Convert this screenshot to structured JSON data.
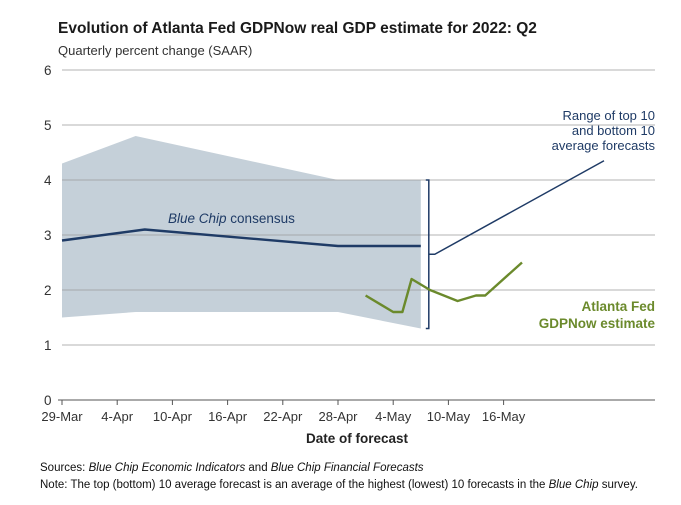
{
  "title": "Evolution of Atlanta Fed GDPNow real GDP estimate for 2022: Q2",
  "subtitle": "Quarterly percent change (SAAR)",
  "chart_data": {
    "type": "line",
    "title": "Evolution of Atlanta Fed GDPNow real GDP estimate for 2022: Q2",
    "ylabel": "Quarterly percent change (SAAR)",
    "xlabel": "Date of forecast",
    "ylim": [
      0,
      6
    ],
    "yticks": [
      0,
      1,
      2,
      3,
      4,
      5,
      6
    ],
    "xticks": [
      "29-Mar",
      "4-Apr",
      "10-Apr",
      "16-Apr",
      "22-Apr",
      "28-Apr",
      "4-May",
      "10-May",
      "16-May"
    ],
    "x_start": "29-Mar",
    "x_end": "19-May",
    "grid": "horizontal",
    "series": [
      {
        "name": "Blue Chip consensus",
        "color": "#1f3b66",
        "points": [
          [
            0,
            2.9
          ],
          [
            9,
            3.1
          ],
          [
            30,
            2.8
          ],
          [
            39,
            2.8
          ]
        ]
      },
      {
        "name": "Atlanta Fed GDPNow estimate",
        "color": "#6b8a2c",
        "points": [
          [
            33,
            1.9
          ],
          [
            36,
            1.6
          ],
          [
            37,
            1.6
          ],
          [
            38,
            2.2
          ],
          [
            40,
            2.0
          ],
          [
            43,
            1.8
          ],
          [
            45,
            1.9
          ],
          [
            46,
            1.9
          ],
          [
            50,
            2.5
          ]
        ]
      }
    ],
    "band": {
      "name": "Range of top 10 and bottom 10 average forecasts",
      "color": "#c5d0d9",
      "upper": [
        [
          0,
          4.3
        ],
        [
          8,
          4.8
        ],
        [
          30,
          4.0
        ],
        [
          39,
          4.0
        ]
      ],
      "lower": [
        [
          0,
          1.5
        ],
        [
          8,
          1.6
        ],
        [
          30,
          1.6
        ],
        [
          39,
          1.3
        ]
      ]
    },
    "annotations": {
      "blue_chip": "Blue Chip",
      "blue_chip_suffix": " consensus",
      "range_line1": "Range of top 10",
      "range_line2": "and bottom 10",
      "range_line3": "average forecasts",
      "gdpnow_line1": "Atlanta Fed",
      "gdpnow_line2": "GDPNow estimate"
    }
  },
  "footer": {
    "sources_label": "Sources:",
    "sources_src1": "Blue Chip Economic Indicators",
    "sources_and": " and ",
    "sources_src2": "Blue Chip Financial Forecasts",
    "note_label": "Note:",
    "note_text1": " The top (bottom) 10 average forecast is an average of the highest (lowest) 10 forecasts in the ",
    "note_italic": "Blue Chip",
    "note_text2": " survey."
  }
}
